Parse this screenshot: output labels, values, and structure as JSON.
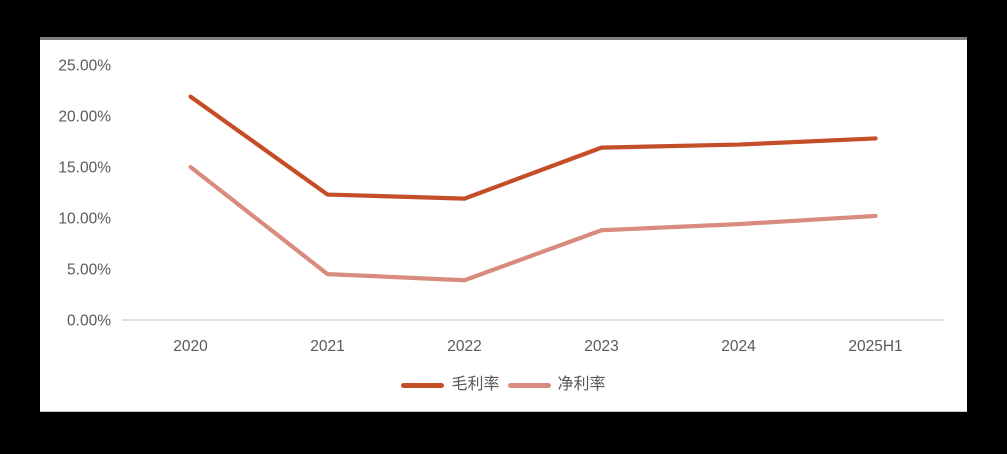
{
  "chart_data": {
    "type": "line",
    "title": "",
    "categories": [
      "2020",
      "2021",
      "2022",
      "2023",
      "2024",
      "2025H1"
    ],
    "series": [
      {
        "name": "毛利率",
        "color": "#C44E28",
        "values": [
          21.9,
          12.3,
          11.9,
          16.9,
          17.2,
          17.8
        ]
      },
      {
        "name": "净利率",
        "color": "#D98C7D",
        "values": [
          15.0,
          4.5,
          3.9,
          8.8,
          9.4,
          10.2
        ]
      }
    ],
    "y_axis": {
      "min": 0,
      "max": 25,
      "step": 5,
      "tick_labels": [
        "0.00%",
        "5.00%",
        "10.00%",
        "15.00%",
        "20.00%",
        "25.00%"
      ]
    },
    "x_axis": {
      "tick_labels": [
        "2020",
        "2021",
        "2022",
        "2023",
        "2024",
        "2025H1"
      ]
    },
    "ylim": [
      0,
      25
    ],
    "gridlines": "off",
    "legend_position": "bottom"
  },
  "colors": {
    "series_gross_margin": "#C44E28",
    "series_net_margin": "#D98C7D",
    "axis_line": "#D6D6D6",
    "tick_text": "#595959",
    "panel_background": "#FFFFFF",
    "outer_background": "#000000",
    "panel_top_border": "#7F7F7F"
  }
}
